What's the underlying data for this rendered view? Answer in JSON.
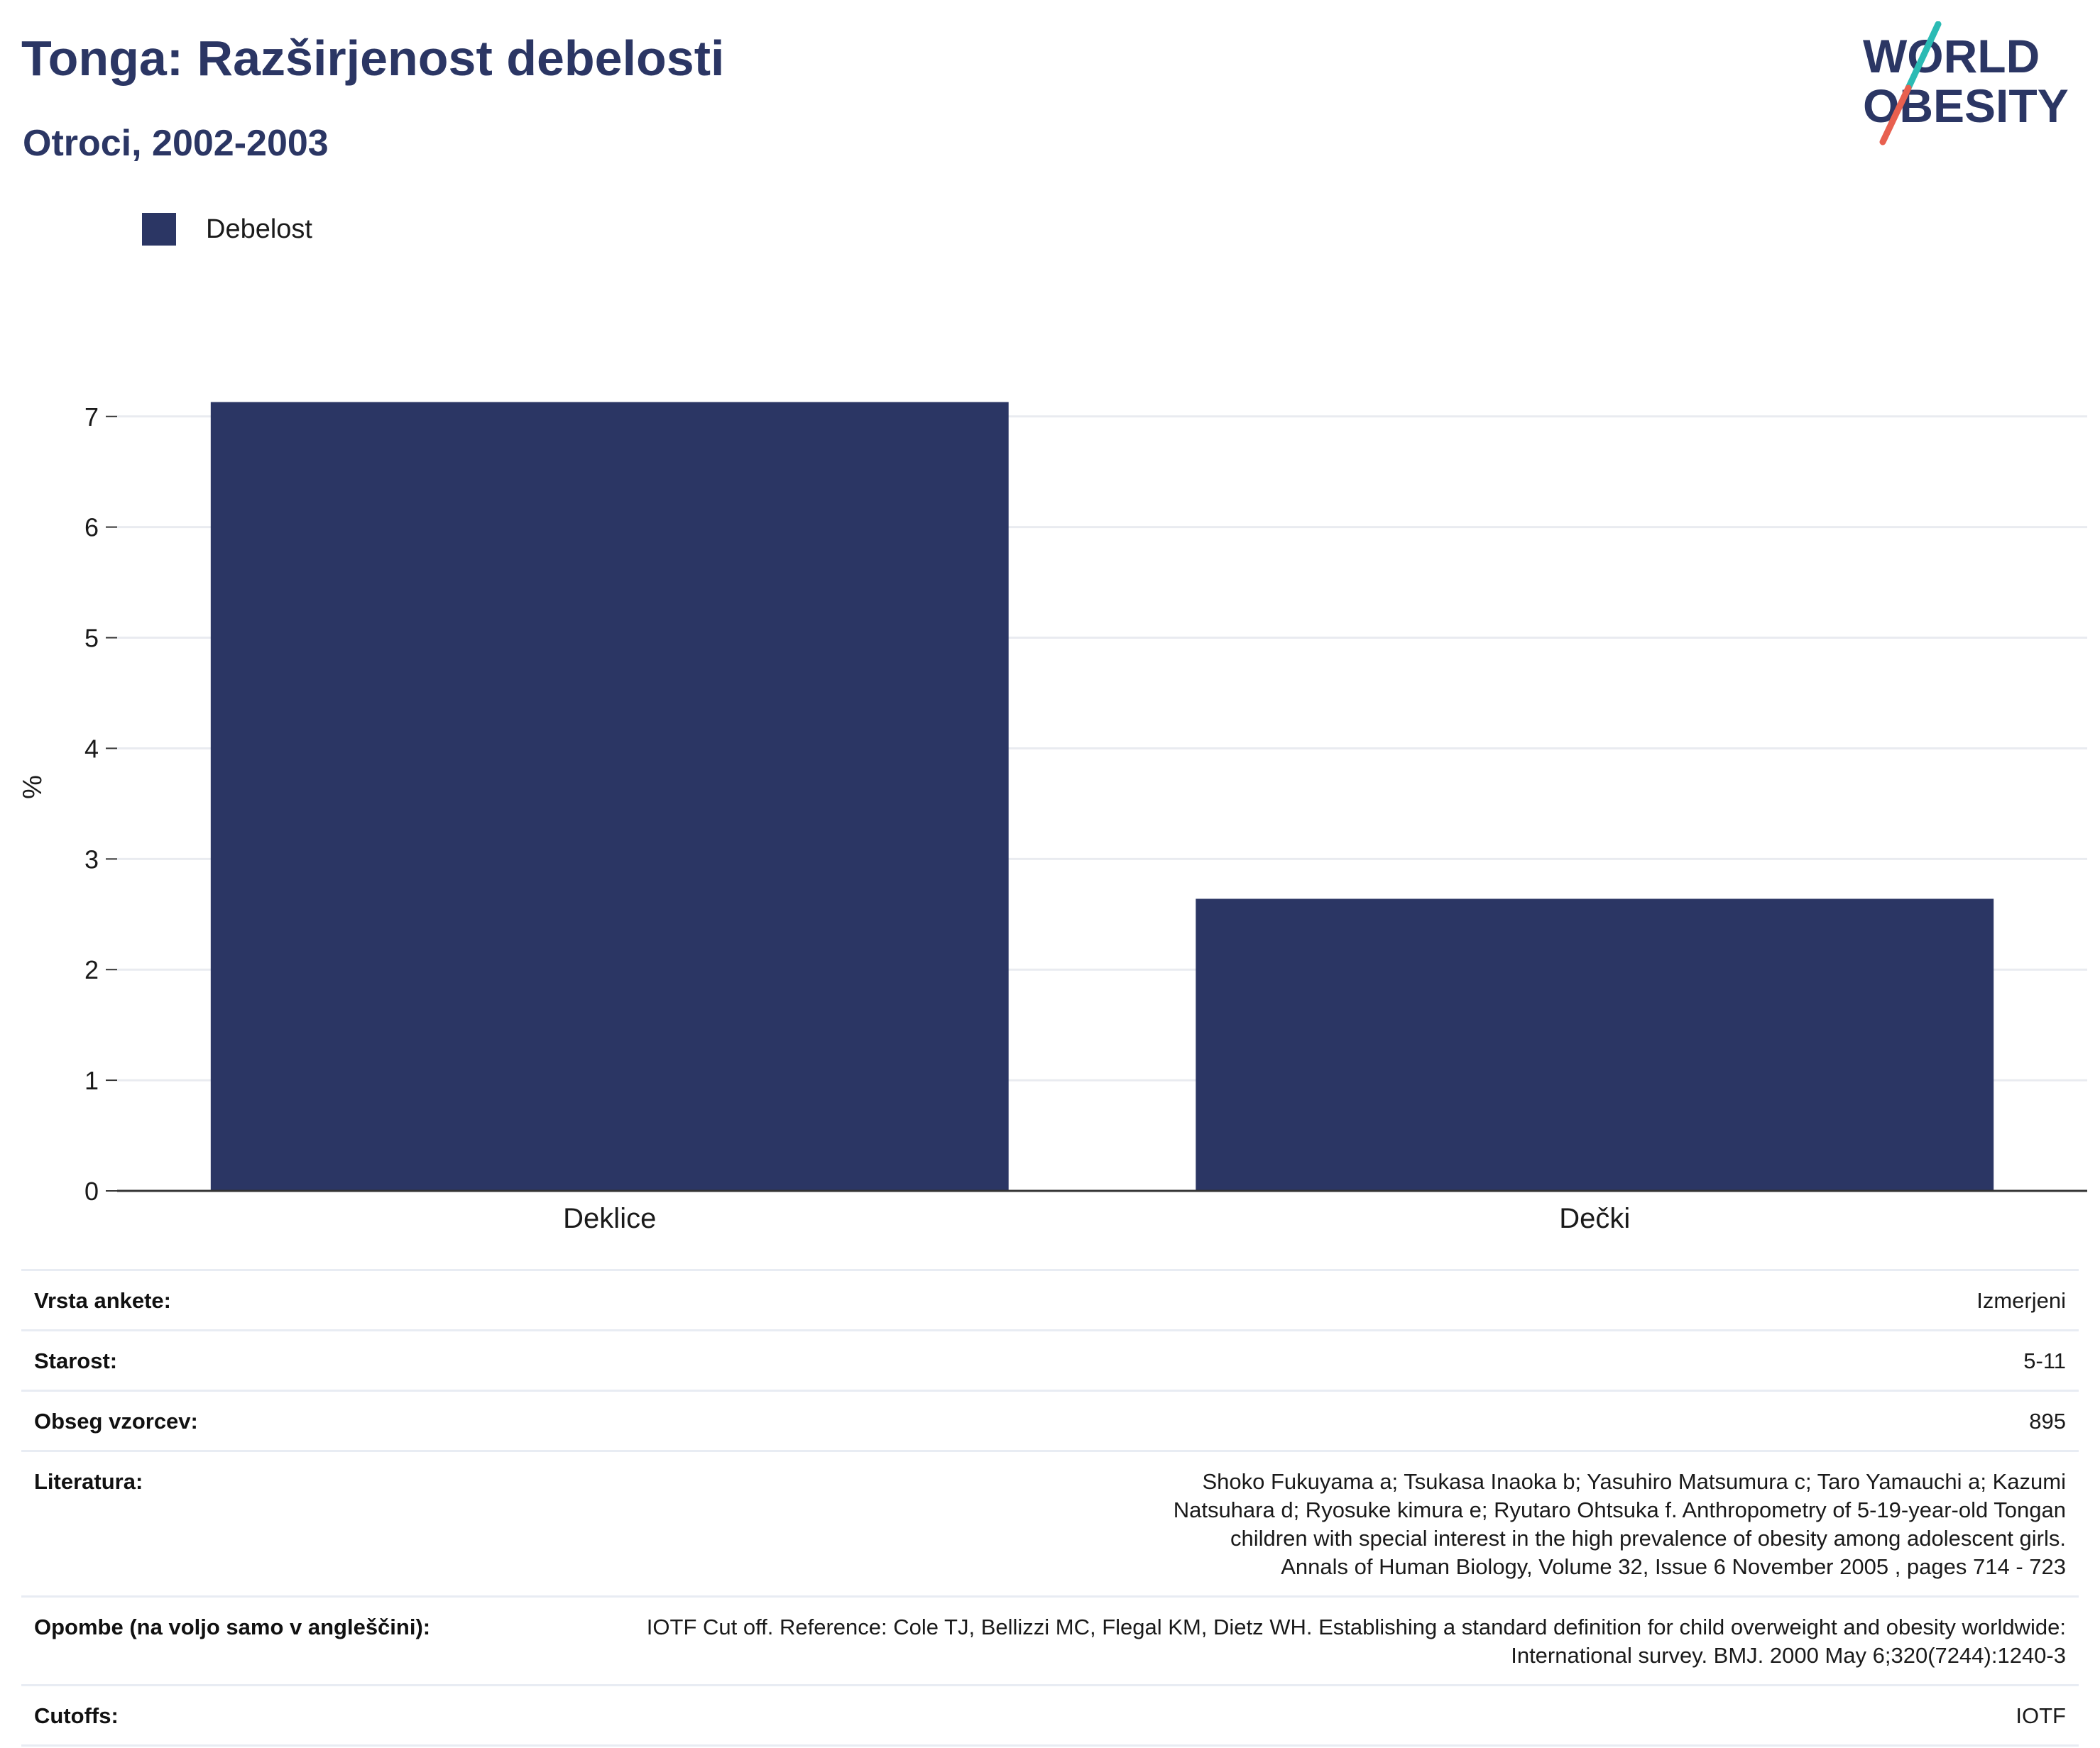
{
  "header": {
    "title": "Tonga: Razširjenost debelosti",
    "subtitle": "Otroci, 2002-2003"
  },
  "logo": {
    "line1": "WORLD",
    "line2": "OBESITY",
    "colors": {
      "text": "#2b3664",
      "slash_top": "#2bbbb4",
      "slash_bottom": "#e8604f"
    }
  },
  "legend": {
    "items": [
      {
        "label": "Debelost",
        "color": "#2b3664"
      }
    ]
  },
  "chart_data": {
    "type": "bar",
    "categories": [
      "Deklice",
      "Dečki"
    ],
    "series": [
      {
        "name": "Debelost",
        "values": [
          7.13,
          2.64
        ],
        "color": "#2b3664"
      }
    ],
    "ylabel": "%",
    "xlabel": "",
    "ylim": [
      0,
      7.3
    ],
    "yticks": [
      0,
      1,
      2,
      3,
      4,
      5,
      6,
      7
    ],
    "grid": true,
    "legend_position": "top-left"
  },
  "details": {
    "rows": [
      {
        "key": "Vrsta ankete:",
        "value": "Izmerjeni"
      },
      {
        "key": "Starost:",
        "value": "5-11"
      },
      {
        "key": "Obseg vzorcev:",
        "value": "895"
      },
      {
        "key": "Literatura:",
        "value": "Shoko Fukuyama a;  Tsukasa Inaoka b;  Yasuhiro Matsumura c;  Taro Yamauchi a;  Kazumi Natsuhara d;  Ryosuke kimura e; Ryutaro Ohtsuka f. Anthropometry of 5-19-year-old Tongan children with special interest in the high prevalence of obesity among adolescent girls. Annals of Human Biology, Volume 32, Issue 6 November 2005 , pages 714 - 723"
      },
      {
        "key": "Opombe (na voljo samo v angleščini):",
        "value": "IOTF Cut off. Reference: Cole TJ, Bellizzi MC, Flegal KM, Dietz WH. Establishing a standard definition for child overweight and obesity worldwide: International survey. BMJ. 2000 May 6;320(7244):1240-3"
      },
      {
        "key": "Cutoffs:",
        "value": "IOTF"
      }
    ]
  }
}
